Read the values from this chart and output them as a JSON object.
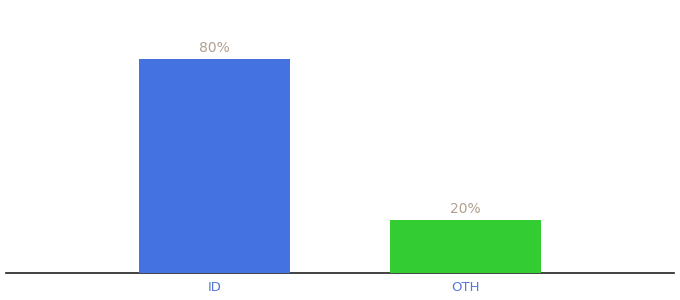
{
  "categories": [
    "ID",
    "OTH"
  ],
  "values": [
    80,
    20
  ],
  "bar_colors": [
    "#4472e0",
    "#33cc33"
  ],
  "labels": [
    "80%",
    "20%"
  ],
  "background_color": "#ffffff",
  "ylim": [
    0,
    100
  ],
  "bar_width": 0.18,
  "label_fontsize": 10,
  "tick_fontsize": 9.5,
  "label_color": "#b0a090",
  "tick_color": "#5577dd",
  "spine_color": "#222222",
  "x_positions": [
    0.35,
    0.65
  ]
}
